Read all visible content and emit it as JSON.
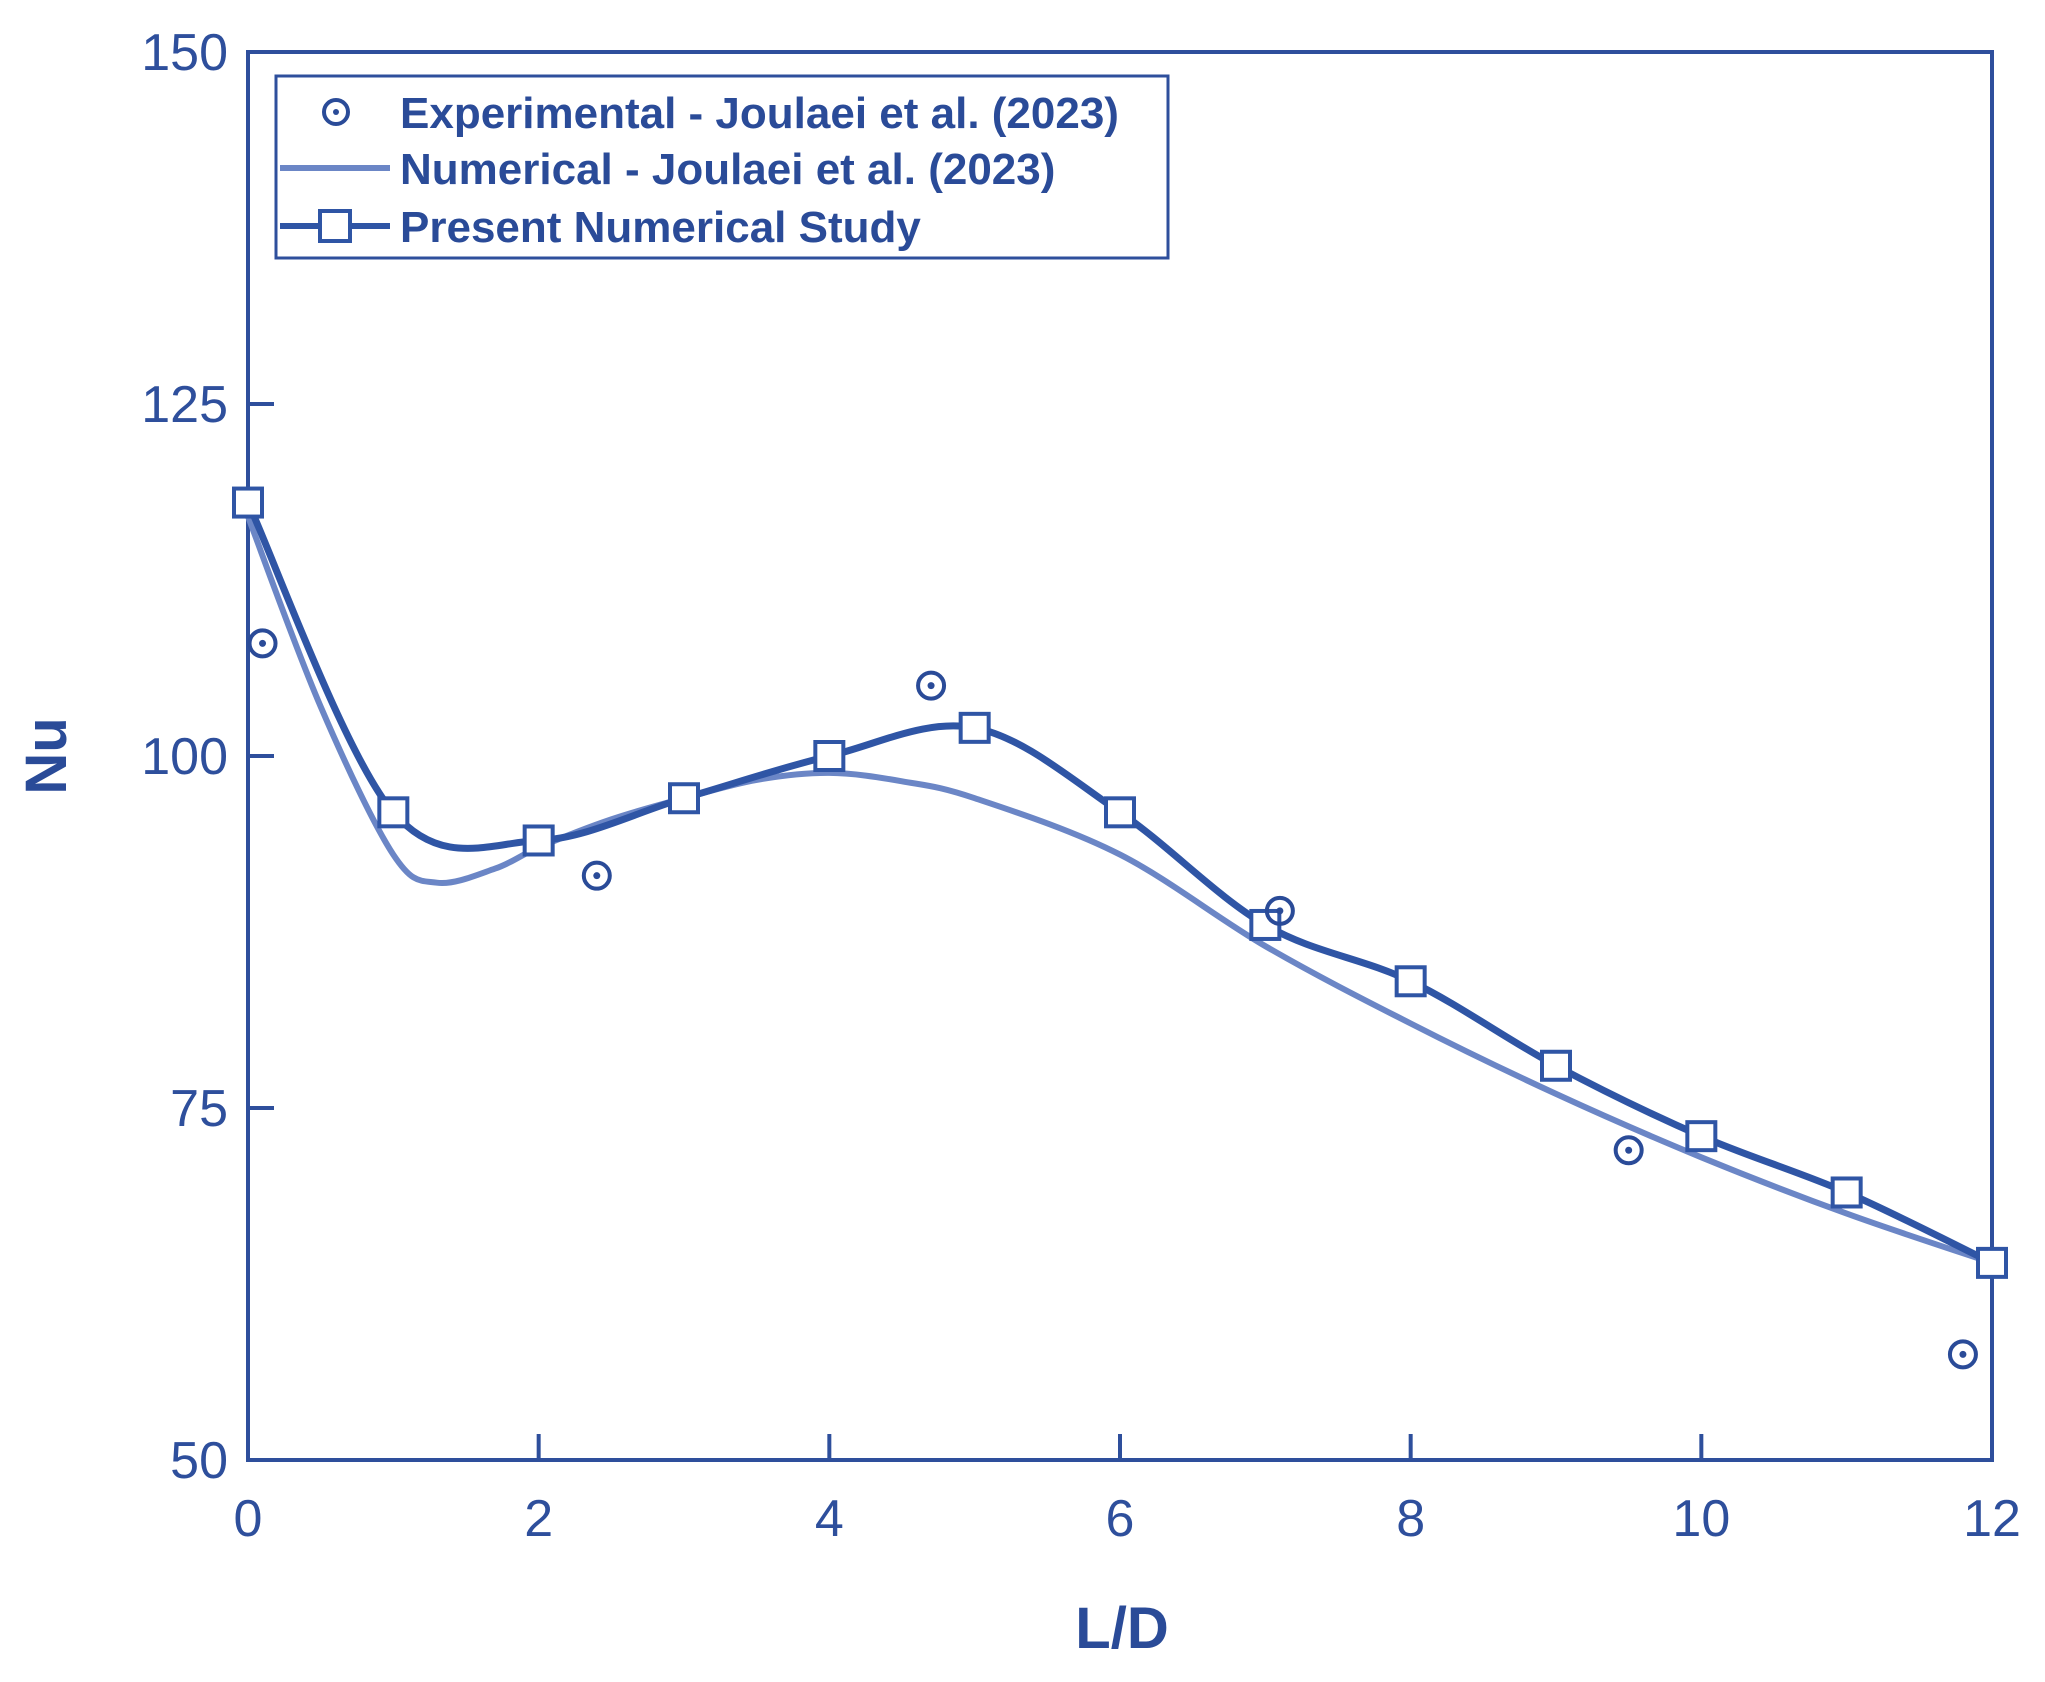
{
  "colors": {
    "axis": "#2e4f9c",
    "experimental": "#2a4b98",
    "numerical_joulaei": "#6b86c6",
    "present": "#2f55a5"
  },
  "chart_data": {
    "type": "line",
    "title": "",
    "xlabel": "L/D",
    "ylabel": "Nu",
    "xlim": [
      0,
      12
    ],
    "ylim": [
      50,
      150
    ],
    "xticks": [
      0,
      2,
      4,
      6,
      8,
      10,
      12
    ],
    "yticks": [
      50,
      75,
      100,
      125,
      150
    ],
    "grid": false,
    "legend_position": "top-left",
    "series": [
      {
        "name": "Experimental - Joulaei et al. (2023)",
        "style": "circle-markers",
        "x": [
          0.1,
          2.4,
          4.7,
          7.1,
          9.5,
          11.8
        ],
        "y": [
          108,
          91.5,
          105,
          89,
          72,
          57.5
        ]
      },
      {
        "name": "Numerical - Joulaei et al. (2023)",
        "style": "smooth-line",
        "x": [
          0,
          0.5,
          1.0,
          1.3,
          1.7,
          2.0,
          2.5,
          3.0,
          3.5,
          4.0,
          4.5,
          5.0,
          6.0,
          7.0,
          8.0,
          9.0,
          10.0,
          11.0,
          12.0
        ],
        "y": [
          117,
          103.5,
          93,
          91,
          92,
          93.5,
          95.5,
          97,
          98.3,
          98.8,
          98.2,
          97,
          93,
          86.5,
          81,
          76,
          71.5,
          67.5,
          64
        ]
      },
      {
        "name": "Present Numerical Study",
        "style": "line-with-square-markers",
        "x": [
          0,
          1,
          2,
          3,
          4,
          5,
          6,
          7,
          8,
          9,
          10,
          11,
          12
        ],
        "y": [
          118,
          96,
          94,
          97,
          100,
          102,
          96,
          88,
          84,
          78,
          73,
          69,
          64
        ]
      }
    ]
  }
}
